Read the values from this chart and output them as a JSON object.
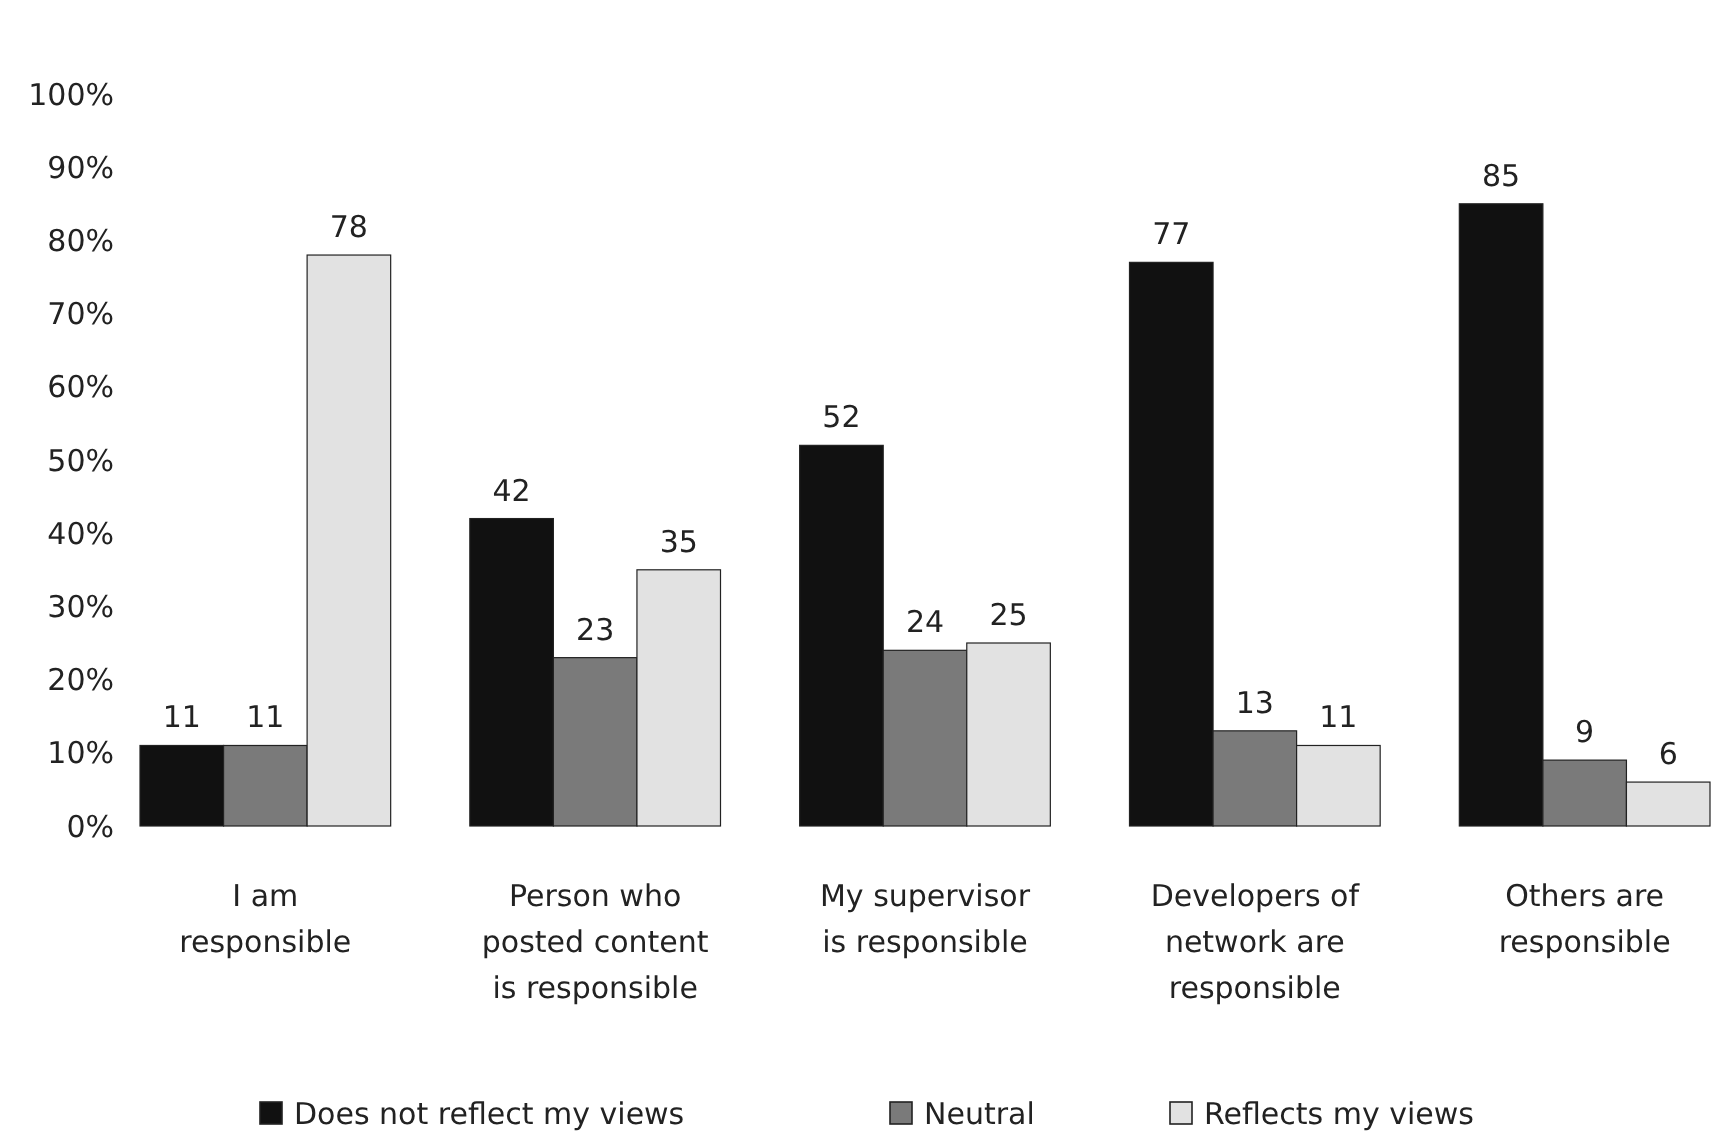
{
  "chart_data": {
    "type": "bar",
    "categories": [
      "I am responsible",
      "Person who posted content is responsible",
      "My supervisor is responsible",
      "Developers of network are responsible",
      "Others are responsible"
    ],
    "series": [
      {
        "name": "Does not reflect my views",
        "color": "#111111",
        "values": [
          11,
          42,
          52,
          77,
          85
        ]
      },
      {
        "name": "Neutral",
        "color": "#7a7a7a",
        "values": [
          11,
          23,
          24,
          13,
          9
        ]
      },
      {
        "name": "Reflects my views",
        "color": "#e2e2e2",
        "values": [
          78,
          35,
          25,
          11,
          6
        ]
      }
    ],
    "ylim": [
      0,
      100
    ],
    "yticks": [
      {
        "value": 0,
        "label": "0%"
      },
      {
        "value": 10,
        "label": "10%"
      },
      {
        "value": 20,
        "label": "20%"
      },
      {
        "value": 30,
        "label": "30%"
      },
      {
        "value": 40,
        "label": "40%"
      },
      {
        "value": 50,
        "label": "50%"
      },
      {
        "value": 60,
        "label": "60%"
      },
      {
        "value": 70,
        "label": "70%"
      },
      {
        "value": 80,
        "label": "80%"
      },
      {
        "value": 90,
        "label": "90%"
      },
      {
        "value": 100,
        "label": "100%"
      }
    ],
    "data_labels": true,
    "grid": false,
    "legend": "bottom"
  }
}
